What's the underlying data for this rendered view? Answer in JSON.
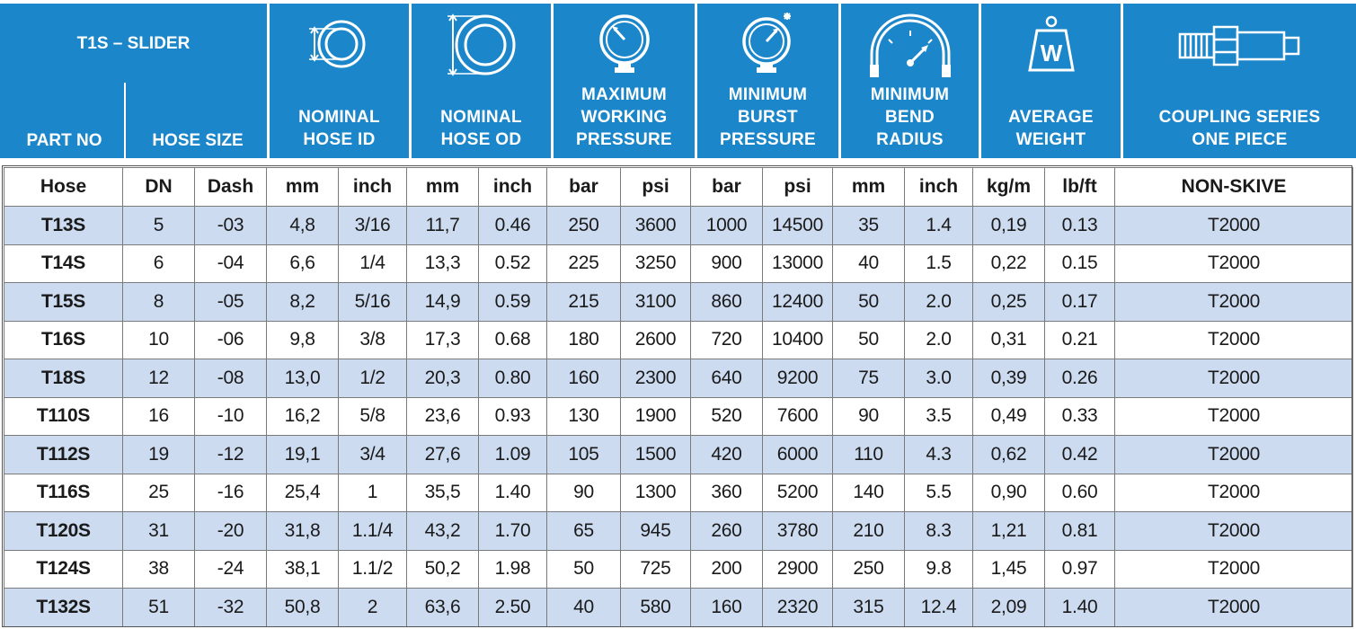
{
  "header": {
    "title": "T1S – SLIDER",
    "groups": [
      {
        "key": "part_no",
        "label_lines": [
          "PART NO"
        ],
        "icon": "none"
      },
      {
        "key": "hose_size",
        "label_lines": [
          "HOSE SIZE"
        ],
        "icon": "none"
      },
      {
        "key": "nominal_id",
        "label_lines": [
          "NOMINAL",
          "HOSE ID"
        ],
        "icon": "hose-inner-diameter-icon"
      },
      {
        "key": "nominal_od",
        "label_lines": [
          "NOMINAL",
          "HOSE OD"
        ],
        "icon": "hose-outer-diameter-icon"
      },
      {
        "key": "max_wp",
        "label_lines": [
          "MAXIMUM",
          "WORKING",
          "PRESSURE"
        ],
        "icon": "pressure-gauge-icon"
      },
      {
        "key": "min_bp",
        "label_lines": [
          "MINIMUM",
          "BURST",
          "PRESSURE"
        ],
        "icon": "burst-gauge-icon"
      },
      {
        "key": "min_br",
        "label_lines": [
          "MINIMUM",
          "BEND",
          "RADIUS"
        ],
        "icon": "bend-radius-icon"
      },
      {
        "key": "avg_w",
        "label_lines": [
          "AVERAGE",
          "WEIGHT"
        ],
        "icon": "weight-icon"
      },
      {
        "key": "coupling",
        "label_lines": [
          "COUPLING SERIES",
          "ONE PIECE"
        ],
        "icon": "coupling-fitting-icon"
      }
    ],
    "weight_letter": "W"
  },
  "columns": [
    "Hose",
    "DN",
    "Dash",
    "mm",
    "inch",
    "mm",
    "inch",
    "bar",
    "psi",
    "bar",
    "psi",
    "mm",
    "inch",
    "kg/m",
    "lb/ft",
    "NON-SKIVE"
  ],
  "rows": [
    [
      "T13S",
      "5",
      "-03",
      "4,8",
      "3/16",
      "11,7",
      "0.46",
      "250",
      "3600",
      "1000",
      "14500",
      "35",
      "1.4",
      "0,19",
      "0.13",
      "T2000"
    ],
    [
      "T14S",
      "6",
      "-04",
      "6,6",
      "1/4",
      "13,3",
      "0.52",
      "225",
      "3250",
      "900",
      "13000",
      "40",
      "1.5",
      "0,22",
      "0.15",
      "T2000"
    ],
    [
      "T15S",
      "8",
      "-05",
      "8,2",
      "5/16",
      "14,9",
      "0.59",
      "215",
      "3100",
      "860",
      "12400",
      "50",
      "2.0",
      "0,25",
      "0.17",
      "T2000"
    ],
    [
      "T16S",
      "10",
      "-06",
      "9,8",
      "3/8",
      "17,3",
      "0.68",
      "180",
      "2600",
      "720",
      "10400",
      "50",
      "2.0",
      "0,31",
      "0.21",
      "T2000"
    ],
    [
      "T18S",
      "12",
      "-08",
      "13,0",
      "1/2",
      "20,3",
      "0.80",
      "160",
      "2300",
      "640",
      "9200",
      "75",
      "3.0",
      "0,39",
      "0.26",
      "T2000"
    ],
    [
      "T110S",
      "16",
      "-10",
      "16,2",
      "5/8",
      "23,6",
      "0.93",
      "130",
      "1900",
      "520",
      "7600",
      "90",
      "3.5",
      "0,49",
      "0.33",
      "T2000"
    ],
    [
      "T112S",
      "19",
      "-12",
      "19,1",
      "3/4",
      "27,6",
      "1.09",
      "105",
      "1500",
      "420",
      "6000",
      "110",
      "4.3",
      "0,62",
      "0.42",
      "T2000"
    ],
    [
      "T116S",
      "25",
      "-16",
      "25,4",
      "1",
      "35,5",
      "1.40",
      "90",
      "1300",
      "360",
      "5200",
      "140",
      "5.5",
      "0,90",
      "0.60",
      "T2000"
    ],
    [
      "T120S",
      "31",
      "-20",
      "31,8",
      "1.1/4",
      "43,2",
      "1.70",
      "65",
      "945",
      "260",
      "3780",
      "210",
      "8.3",
      "1,21",
      "0.81",
      "T2000"
    ],
    [
      "T124S",
      "38",
      "-24",
      "38,1",
      "1.1/2",
      "50,2",
      "1.98",
      "50",
      "725",
      "200",
      "2900",
      "250",
      "9.8",
      "1,45",
      "0.97",
      "T2000"
    ],
    [
      "T132S",
      "51",
      "-32",
      "50,8",
      "2",
      "63,6",
      "2.50",
      "40",
      "580",
      "160",
      "2320",
      "315",
      "12.4",
      "2,09",
      "1.40",
      "T2000"
    ]
  ],
  "colors": {
    "header_blue": "#1b86c9",
    "stripe": "#ccdbf0",
    "border": "#7a7a7a"
  }
}
